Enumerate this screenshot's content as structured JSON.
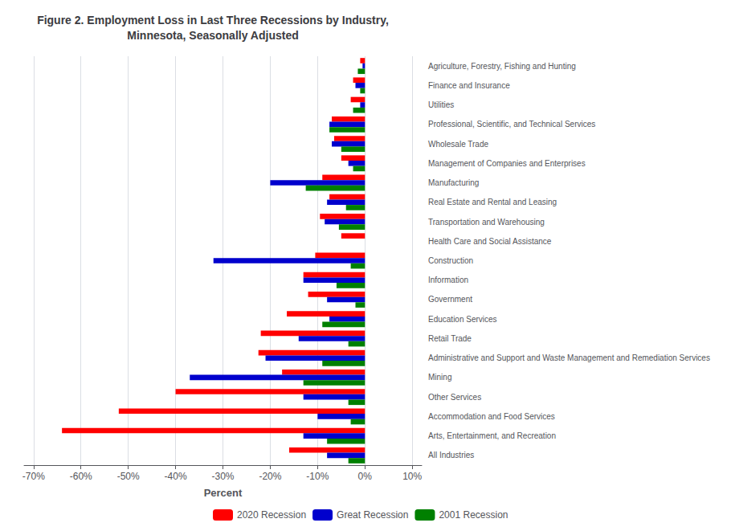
{
  "chart_data": {
    "type": "bar",
    "orientation": "horizontal",
    "title": "Figure 2. Employment Loss in Last Three Recessions by Industry,\nMinnesota, Seasonally Adjusted",
    "xlabel": "Percent",
    "categories": [
      "Agriculture, Forestry, Fishing and Hunting",
      "Finance and Insurance",
      "Utilities",
      "Professional, Scientific, and Technical Services",
      "Wholesale Trade",
      "Management of Companies and Enterprises",
      "Manufacturing",
      "Real Estate and Rental and Leasing",
      "Transportation and Warehousing",
      "Health Care and Social Assistance",
      "Construction",
      "Information",
      "Government",
      "Education Services",
      "Retail Trade",
      "Administrative and Support and Waste Management and Remediation Services",
      "Mining",
      "Other Services",
      "Accommodation and Food Services",
      "Arts, Entertainment, and Recreation",
      "All Industries"
    ],
    "series": [
      {
        "name": "2020 Recession",
        "color": "#FF0000",
        "values": [
          -0.01,
          -0.025,
          -0.03,
          -0.07,
          -0.065,
          -0.05,
          -0.09,
          -0.075,
          -0.095,
          -0.05,
          -0.105,
          -0.13,
          -0.12,
          -0.165,
          -0.22,
          -0.225,
          -0.175,
          -0.4,
          -0.52,
          -0.64,
          -0.16
        ]
      },
      {
        "name": "Great Recession",
        "color": "#0000CD",
        "values": [
          -0.005,
          -0.02,
          -0.01,
          -0.075,
          -0.07,
          -0.035,
          -0.2,
          -0.08,
          -0.085,
          0,
          -0.32,
          -0.13,
          -0.08,
          -0.075,
          -0.14,
          -0.21,
          -0.37,
          -0.13,
          -0.1,
          -0.13,
          -0.08
        ]
      },
      {
        "name": "2001 Recession",
        "color": "#008000",
        "values": [
          -0.015,
          -0.01,
          -0.025,
          -0.075,
          -0.05,
          -0.025,
          -0.125,
          -0.04,
          -0.055,
          0,
          -0.03,
          -0.06,
          -0.02,
          -0.09,
          -0.035,
          -0.09,
          -0.13,
          -0.035,
          -0.03,
          -0.08,
          -0.035
        ]
      }
    ],
    "xlim": [
      -0.72,
      0.12
    ],
    "xticks": [
      {
        "value": -0.7,
        "label": "-70%"
      },
      {
        "value": -0.6,
        "label": "-60%"
      },
      {
        "value": -0.5,
        "label": "-50%"
      },
      {
        "value": -0.4,
        "label": "-40%"
      },
      {
        "value": -0.3,
        "label": "-30%"
      },
      {
        "value": -0.2,
        "label": "-20%"
      },
      {
        "value": -0.1,
        "label": "-10%"
      },
      {
        "value": 0,
        "label": "0%"
      },
      {
        "value": 0.1,
        "label": "10%"
      }
    ],
    "grid": true,
    "legend": "bottom"
  }
}
